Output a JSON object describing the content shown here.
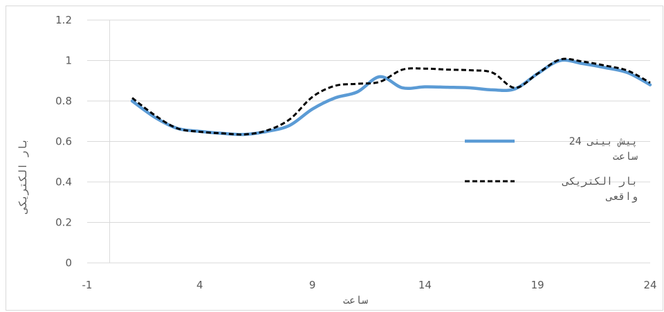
{
  "chart_data": {
    "type": "line",
    "xlabel": "ساعت",
    "ylabel": "بار الکتریکی",
    "xlim": [
      -1,
      24
    ],
    "ylim": [
      0,
      1.2
    ],
    "x_ticks": [
      -1,
      4,
      9,
      14,
      19,
      24
    ],
    "y_ticks": [
      0,
      0.2,
      0.4,
      0.6,
      0.8,
      1,
      1.2
    ],
    "x_tick_labels": [
      "-1",
      "4",
      "9",
      "14",
      "19",
      "24"
    ],
    "y_tick_labels": [
      "0",
      "0.2",
      "0.4",
      "0.6",
      "0.8",
      "1",
      "1.2"
    ],
    "grid": "horizontal",
    "legend": "right",
    "series": [
      {
        "name": "پیش بینی 24 ساعت",
        "color": "#5b9bd5",
        "style": "solid",
        "x": [
          1,
          2,
          3,
          4,
          5,
          6,
          7,
          8,
          9,
          10,
          11,
          12,
          13,
          14,
          15,
          16,
          17,
          18,
          19,
          20,
          21,
          22,
          23,
          24
        ],
        "y": [
          0.8,
          0.72,
          0.665,
          0.65,
          0.64,
          0.635,
          0.65,
          0.68,
          0.76,
          0.815,
          0.845,
          0.92,
          0.865,
          0.87,
          0.868,
          0.865,
          0.855,
          0.86,
          0.935,
          1.0,
          0.985,
          0.965,
          0.94,
          0.88
        ]
      },
      {
        "name": "بار الکتریکی واقعی",
        "color": "#000000",
        "style": "dashed",
        "x": [
          1,
          2,
          3,
          4,
          5,
          6,
          7,
          8,
          9,
          10,
          11,
          12,
          13,
          14,
          15,
          16,
          17,
          18,
          19,
          20,
          21,
          22,
          23,
          24
        ],
        "y": [
          0.815,
          0.73,
          0.665,
          0.648,
          0.64,
          0.635,
          0.655,
          0.71,
          0.82,
          0.875,
          0.885,
          0.895,
          0.955,
          0.96,
          0.955,
          0.952,
          0.94,
          0.865,
          0.935,
          1.005,
          0.995,
          0.975,
          0.95,
          0.89
        ]
      }
    ],
    "legend_lines": [
      [
        "پیش بینی 24",
        "ساعت"
      ],
      [
        "بار الکتریکی",
        "واقعی"
      ]
    ]
  }
}
